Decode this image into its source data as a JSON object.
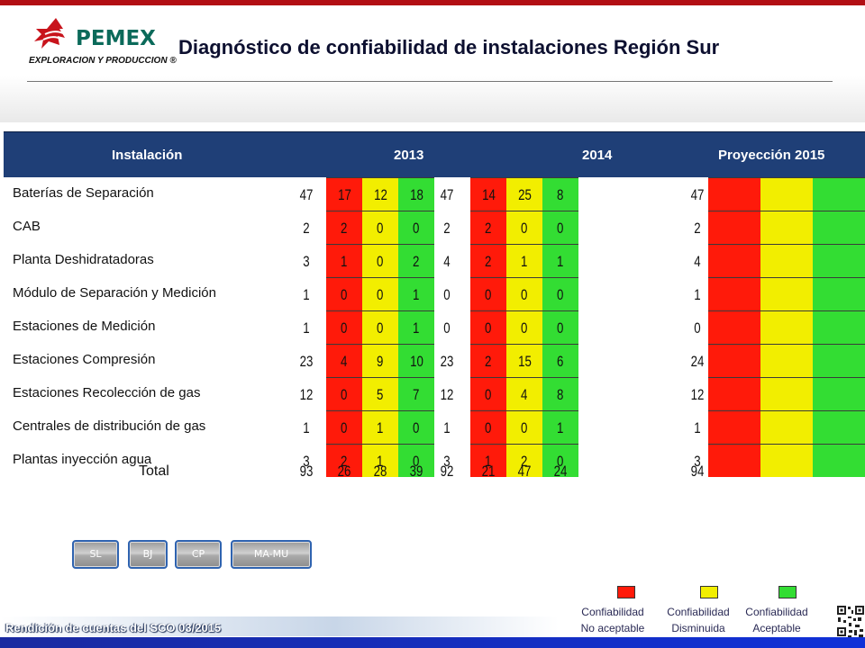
{
  "logo": {
    "word": "PEMEX",
    "sub": "EXPLORACION Y PRODUCCION ®"
  },
  "title": "Diagnóstico de confiabilidad de instalaciones Región Sur",
  "table": {
    "headers": {
      "installation": "Instalación",
      "y2013": "2013",
      "y2014": "2014",
      "projection": "Proyección 2015"
    },
    "rows": [
      {
        "label": "Baterías de Separación",
        "t13": "47",
        "r13": "17",
        "y13": "12",
        "g13": "18",
        "t14": "47",
        "r14": "14",
        "y14": "25",
        "g14": "8",
        "p15": "47"
      },
      {
        "label": "CAB",
        "t13": "2",
        "r13": "2",
        "y13": "0",
        "g13": "0",
        "t14": "2",
        "r14": "2",
        "y14": "0",
        "g14": "0",
        "p15": "2"
      },
      {
        "label": "Planta  Deshidratadoras",
        "t13": "3",
        "r13": "1",
        "y13": "0",
        "g13": "2",
        "t14": "4",
        "r14": "2",
        "y14": "1",
        "g14": "1",
        "p15": "4"
      },
      {
        "label": "Módulo de Separación y Medición",
        "t13": "1",
        "r13": "0",
        "y13": "0",
        "g13": "1",
        "t14": "0",
        "r14": "0",
        "y14": "0",
        "g14": "0",
        "p15": "1"
      },
      {
        "label": "Estaciones de Medición",
        "t13": "1",
        "r13": "0",
        "y13": "0",
        "g13": "1",
        "t14": "0",
        "r14": "0",
        "y14": "0",
        "g14": "0",
        "p15": "0"
      },
      {
        "label": "Estaciones  Compresión",
        "t13": "23",
        "r13": "4",
        "y13": "9",
        "g13": "10",
        "t14": "23",
        "r14": "2",
        "y14": "15",
        "g14": "6",
        "p15": "24"
      },
      {
        "label": "Estaciones  Recolección de gas",
        "t13": "12",
        "r13": "0",
        "y13": "5",
        "g13": "7",
        "t14": "12",
        "r14": "0",
        "y14": "4",
        "g14": "8",
        "p15": "12"
      },
      {
        "label": "Centrales de distribución de gas",
        "t13": "1",
        "r13": "0",
        "y13": "1",
        "g13": "0",
        "t14": "1",
        "r14": "0",
        "y14": "0",
        "g14": "1",
        "p15": "1"
      },
      {
        "label": "Plantas inyección agua",
        "t13": "3",
        "r13": "2",
        "y13": "1",
        "g13": "0",
        "t14": "3",
        "r14": "1",
        "y14": "2",
        "g14": "0",
        "p15": "3"
      }
    ],
    "total": {
      "label": "Total",
      "t13": "93",
      "r13": "26",
      "y13": "28",
      "g13": "39",
      "t14": "92",
      "r14": "21",
      "y14": "47",
      "g14": "24",
      "p15": "94"
    }
  },
  "nav": [
    "SL",
    "BJ",
    "CP",
    "MA-MU"
  ],
  "legend": [
    {
      "line1": "Confiabilidad",
      "line2": "No aceptable",
      "color": "#ff1a0a"
    },
    {
      "line1": "Confiabilidad",
      "line2": "Disminuida",
      "color": "#f2ee00"
    },
    {
      "line1": "Confiabilidad",
      "line2": "Aceptable",
      "color": "#33dd33"
    }
  ],
  "footer": "Rendición de cuentas del SCO 03/2015",
  "colors": {
    "red": "#ff1a0a",
    "yellow": "#f2ee00",
    "green": "#33dd33",
    "header": "#1f3f77",
    "brand_red": "#b20e14"
  }
}
